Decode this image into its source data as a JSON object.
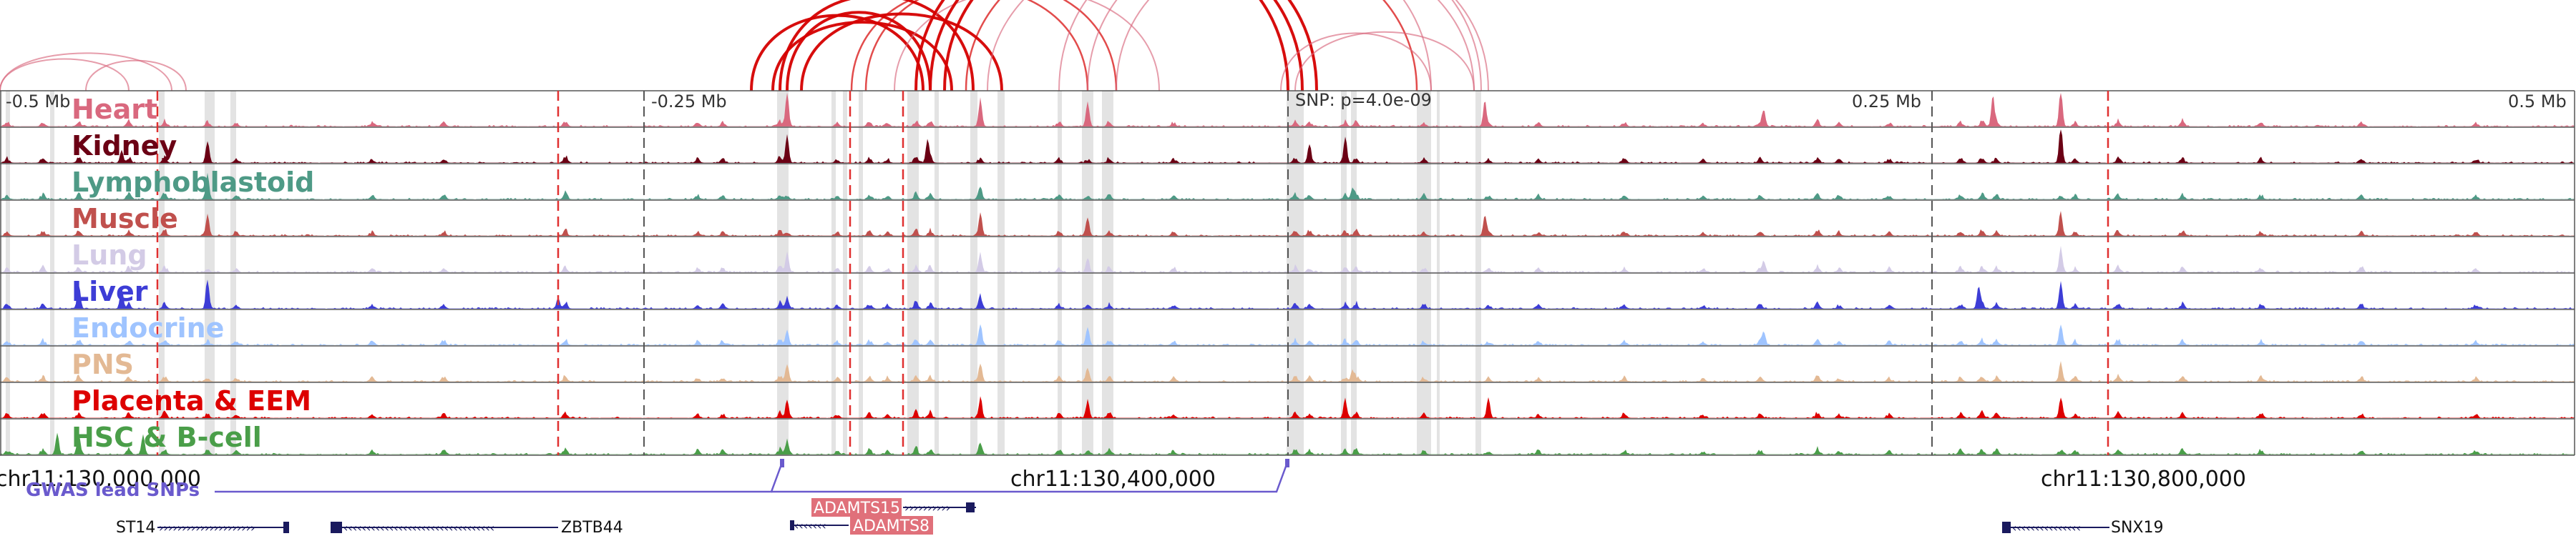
{
  "colors": {
    "heart": "#d9687e",
    "kidney": "#6b0014",
    "lymphoblastoid": "#4e9a86",
    "muscle": "#c0504d",
    "lung": "#d3cbe6",
    "liver": "#3d3dd6",
    "endocrine": "#9fc4ff",
    "pns": "#e3b994",
    "placenta": "#dd0000",
    "hsc": "#4a9e49",
    "arc": "#d50000",
    "gwas": "#6a5acd",
    "gene": "#1a1a5e",
    "gene_highlight": "#e0707a",
    "boundary": "#e03030",
    "highlight_band": "#d9d9d9"
  },
  "axis": {
    "ticks": [
      {
        "label": "-0.5 Mb",
        "value": -0.5
      },
      {
        "label": "-0.25 Mb",
        "value": -0.25
      },
      {
        "label": "SNP: p=4.0e-09",
        "value": 0.0
      },
      {
        "label": "0.25 Mb",
        "value": 0.25
      },
      {
        "label": "0.5 Mb",
        "value": 0.5
      }
    ]
  },
  "tracks": [
    {
      "key": "heart",
      "label": "Heart",
      "color_key": "heart"
    },
    {
      "key": "kidney",
      "label": "Kidney",
      "color_key": "kidney"
    },
    {
      "key": "lymphoblastoid",
      "label": "Lymphoblastoid",
      "color_key": "lymphoblastoid"
    },
    {
      "key": "muscle",
      "label": "Muscle",
      "color_key": "muscle"
    },
    {
      "key": "lung",
      "label": "Lung",
      "color_key": "lung"
    },
    {
      "key": "liver",
      "label": "Liver",
      "color_key": "liver"
    },
    {
      "key": "endocrine",
      "label": "Endocrine",
      "color_key": "endocrine"
    },
    {
      "key": "pns",
      "label": "PNS",
      "color_key": "pns"
    },
    {
      "key": "placenta",
      "label": "Placenta & EEM",
      "color_key": "placenta"
    },
    {
      "key": "hsc",
      "label": "HSC & B-cell",
      "color_key": "hsc"
    }
  ],
  "genome": {
    "coords": [
      {
        "label": "chr11:130,000,000",
        "value": 130000000
      },
      {
        "label": "chr11:130,400,000",
        "value": 130400000
      },
      {
        "label": "chr11:130,800,000",
        "value": 130800000
      }
    ],
    "gwas_label": "GWAS lead SNPs",
    "genes": [
      {
        "name": "ST14",
        "strand": "+",
        "highlight": false
      },
      {
        "name": "ZBTB44",
        "strand": "-",
        "highlight": false
      },
      {
        "name": "ADAMTS15",
        "strand": "+",
        "highlight": true
      },
      {
        "name": "ADAMTS8",
        "strand": "-",
        "highlight": true
      },
      {
        "name": "SNX19",
        "strand": "-",
        "highlight": false
      }
    ]
  }
}
